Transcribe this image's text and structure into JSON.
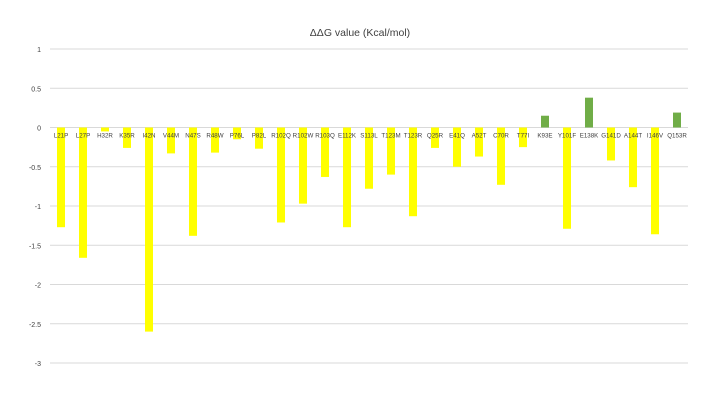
{
  "chart_data": {
    "type": "bar",
    "title": "ΔΔG value (Kcal/mol)",
    "xlabel": "",
    "ylabel": "",
    "ylim": [
      -3,
      1
    ],
    "yticks": [
      1,
      0.5,
      0,
      -0.5,
      -1,
      -1.5,
      -2,
      -2.5,
      -3
    ],
    "grid": true,
    "legend": "none",
    "colors": {
      "negative": "#FFFF00",
      "positive": "#70AD47",
      "grid": "#d9d9d9",
      "text": "#404040"
    },
    "categories": [
      "L21P",
      "L27P",
      "H32R",
      "K35R",
      "I42N",
      "V44M",
      "N47S",
      "R48W",
      "P76L",
      "P82L",
      "R102Q",
      "R102W",
      "R103Q",
      "E112K",
      "S113L",
      "T123M",
      "T123R",
      "Q25R",
      "E41Q",
      "A52T",
      "C70R",
      "T77I",
      "K93E",
      "Y101F",
      "E138K",
      "G141D",
      "A144T",
      "I146V",
      "Q153R"
    ],
    "values": [
      -1.27,
      -1.66,
      -0.05,
      -0.26,
      -2.6,
      -0.33,
      -1.38,
      -0.32,
      -0.15,
      -0.27,
      -1.21,
      -0.97,
      -0.63,
      -1.27,
      -0.78,
      -0.6,
      -1.13,
      -0.26,
      -0.5,
      -0.37,
      -0.73,
      -0.25,
      0.15,
      -1.29,
      0.38,
      -0.42,
      -0.76,
      -1.36,
      0.19
    ]
  }
}
